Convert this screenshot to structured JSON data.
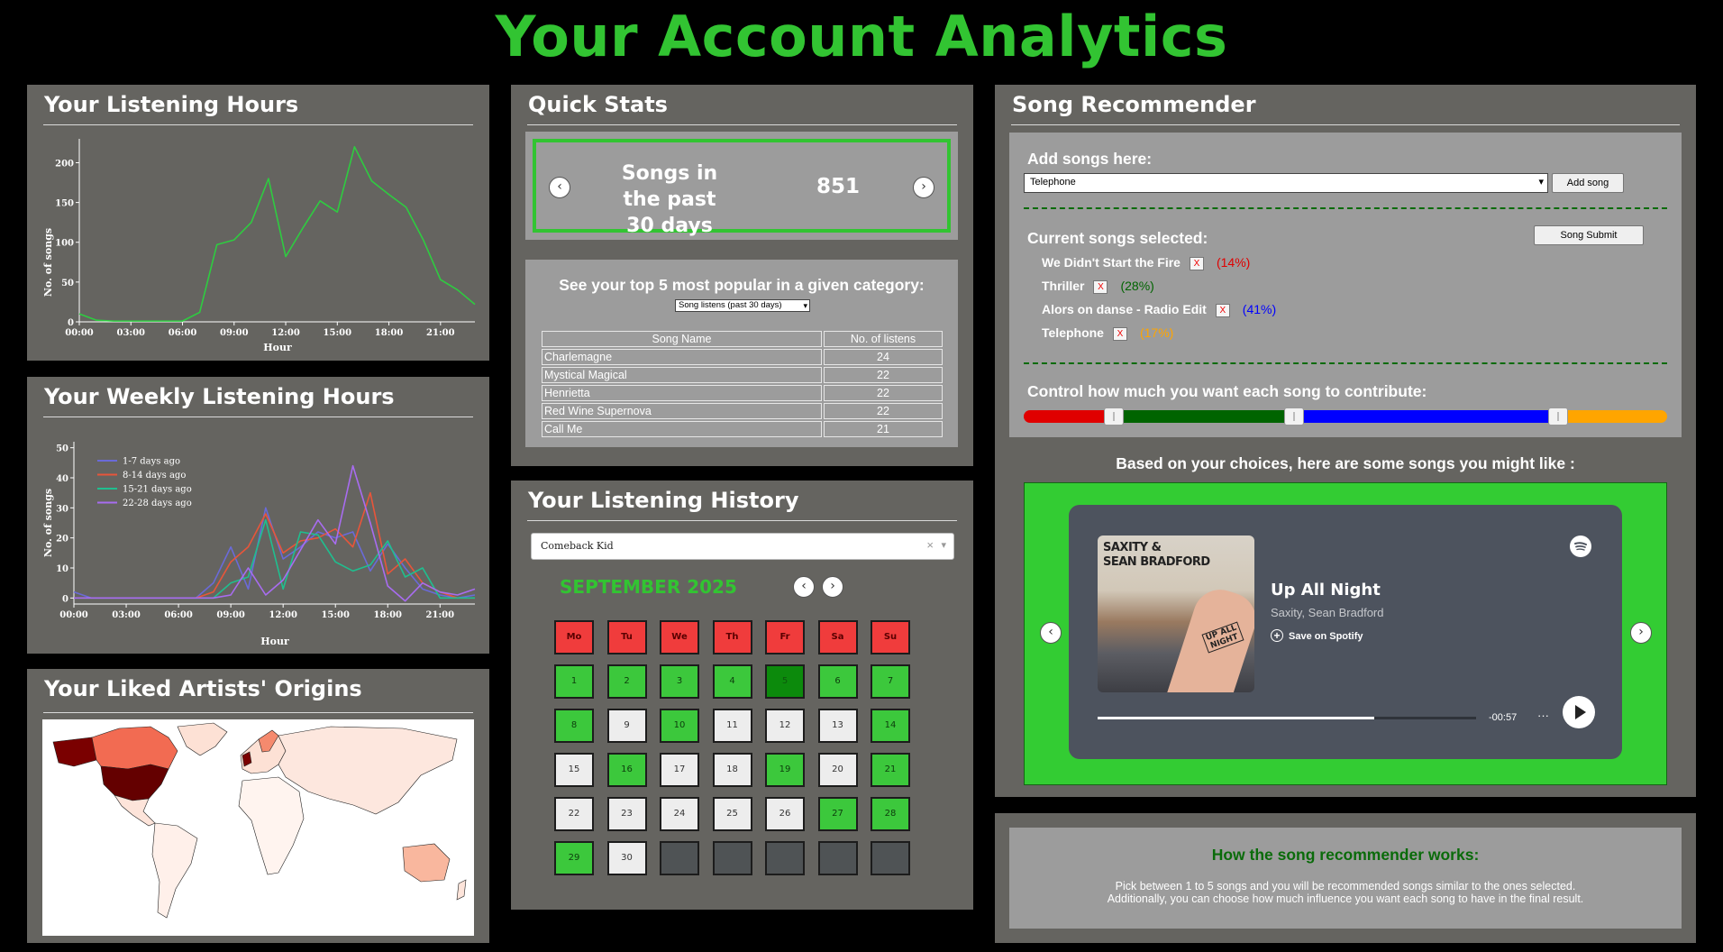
{
  "page": {
    "title": "Your Account Analytics"
  },
  "listening_hours": {
    "title": "Your Listening Hours",
    "ylabel": "No. of songs",
    "xlabel": "Hour",
    "yticks": [
      "0",
      "50",
      "100",
      "150",
      "200"
    ],
    "xticks": [
      "00:00",
      "03:00",
      "06:00",
      "09:00",
      "12:00",
      "15:00",
      "18:00",
      "21:00"
    ]
  },
  "weekly_hours": {
    "title": "Your Weekly Listening Hours",
    "ylabel": "No. of songs",
    "xlabel": "Hour",
    "yticks": [
      "0",
      "10",
      "20",
      "30",
      "40",
      "50"
    ],
    "xticks": [
      "00:00",
      "03:00",
      "06:00",
      "09:00",
      "12:00",
      "15:00",
      "18:00",
      "21:00"
    ],
    "legend": [
      "1-7 days ago",
      "8-14 days ago",
      "15-21 days ago",
      "22-28 days ago"
    ]
  },
  "artists": {
    "title": "Your Liked Artists' Origins"
  },
  "quick_stats": {
    "title": "Quick Stats",
    "label": "Songs in the past 30 days",
    "value": "851",
    "prev_icon": "‹",
    "next_icon": "›"
  },
  "top5": {
    "heading": "See your top 5 most popular in a given category:",
    "select_value": "Song listens (past 30 days)",
    "headers": [
      "Song Name",
      "No. of listens"
    ],
    "rows": [
      [
        "Charlemagne",
        "24"
      ],
      [
        "Mystical Magical",
        "22"
      ],
      [
        "Henrietta",
        "22"
      ],
      [
        "Red Wine Supernova",
        "22"
      ],
      [
        "Call Me",
        "21"
      ]
    ]
  },
  "history": {
    "title": "Your Listening History",
    "dropdown_value": "Comeback Kid",
    "clear_icon": "×",
    "caret_icon": "▾",
    "month": "SEPTEMBER 2025",
    "weekdays": [
      "Mo",
      "Tu",
      "We",
      "Th",
      "Fr",
      "Sa",
      "Su"
    ],
    "days": [
      "1",
      "2",
      "3",
      "4",
      "5",
      "6",
      "7",
      "8",
      "9",
      "10",
      "11",
      "12",
      "13",
      "14",
      "15",
      "16",
      "17",
      "18",
      "19",
      "20",
      "21",
      "22",
      "23",
      "24",
      "25",
      "26",
      "27",
      "28",
      "29",
      "30"
    ]
  },
  "recommender": {
    "title": "Song Recommender",
    "add_label": "Add songs here:",
    "add_select": "Telephone",
    "add_button": "Add song",
    "current_label": "Current songs selected:",
    "submit_button": "Song Submit",
    "remove_icon": "X",
    "songs": [
      {
        "name": "We Didn't Start the Fire",
        "pct": "(14%)",
        "color": "#e00000"
      },
      {
        "name": "Thriller",
        "pct": "(28%)",
        "color": "#006400"
      },
      {
        "name": "Alors on danse - Radio Edit",
        "pct": "(41%)",
        "color": "#0000ff"
      },
      {
        "name": "Telephone",
        "pct": "(17%)",
        "color": "#ffa500"
      }
    ],
    "contrib_label": "Control how much you want each song to contribute:",
    "based_label": "Based on your choices, here are some songs you might like :",
    "player": {
      "track": "Up All Night",
      "artists": "Saxity, Sean Bradford",
      "save": "Save on Spotify",
      "time": "-00:57",
      "more": "···",
      "cover_artist_1": "SAXITY &",
      "cover_artist_2": "SEAN BRADFORD",
      "cover_tag": "UP ALL NIGHT",
      "progress": 0.73
    }
  },
  "how_it_works": {
    "title": "How the song recommender works:",
    "line1": "Pick between 1 to 5 songs and you will be recommended songs similar to the ones selected.",
    "line2": "Additionally, you can choose how much influence you want each song to have in the final result."
  },
  "colors": {
    "accent": "#32c432",
    "panel": "#656460",
    "inner": "#9c9c9c"
  },
  "chart_data": [
    {
      "type": "line",
      "title": "Your Listening Hours",
      "xlabel": "Hour",
      "ylabel": "No. of songs",
      "x": [
        0,
        1,
        2,
        3,
        4,
        5,
        6,
        7,
        8,
        9,
        10,
        11,
        12,
        13,
        14,
        15,
        16,
        17,
        18,
        19,
        20,
        21,
        22,
        23
      ],
      "series": [
        {
          "values": [
            10,
            2,
            1,
            1,
            1,
            1,
            1,
            12,
            97,
            103,
            125,
            180,
            82,
            118,
            152,
            138,
            220,
            177,
            160,
            144,
            103,
            53,
            40,
            22
          ]
        }
      ],
      "ylim": [
        0,
        230
      ]
    },
    {
      "type": "line",
      "title": "Your Weekly Listening Hours",
      "xlabel": "Hour",
      "ylabel": "No. of songs",
      "x": [
        0,
        1,
        2,
        3,
        4,
        5,
        6,
        7,
        8,
        9,
        10,
        11,
        12,
        13,
        14,
        15,
        16,
        17,
        18,
        19,
        20,
        21,
        22,
        23
      ],
      "series": [
        {
          "name": "1-7 days ago",
          "values": [
            2,
            0,
            0,
            0,
            0,
            0,
            0,
            0,
            5,
            17,
            3,
            30,
            13,
            17,
            22,
            20,
            22,
            9,
            18,
            10,
            3,
            1,
            0,
            1
          ]
        },
        {
          "name": "8-14 days ago",
          "values": [
            0,
            0,
            0,
            0,
            0,
            0,
            0,
            0,
            2,
            12,
            17,
            28,
            15,
            19,
            20,
            23,
            17,
            35,
            8,
            13,
            5,
            2,
            0,
            0
          ]
        },
        {
          "name": "15-21 days ago",
          "values": [
            0,
            0,
            0,
            0,
            0,
            0,
            0,
            0,
            0,
            5,
            7,
            26,
            3,
            22,
            21,
            12,
            9,
            11,
            19,
            7,
            10,
            0,
            0,
            0
          ]
        },
        {
          "name": "22-28 days ago",
          "values": [
            0,
            0,
            0,
            0,
            0,
            0,
            0,
            0,
            0,
            1,
            10,
            1,
            6,
            16,
            26,
            18,
            44,
            25,
            4,
            -1,
            5,
            2,
            1,
            3
          ]
        }
      ],
      "ylim": [
        -2,
        52
      ]
    }
  ]
}
